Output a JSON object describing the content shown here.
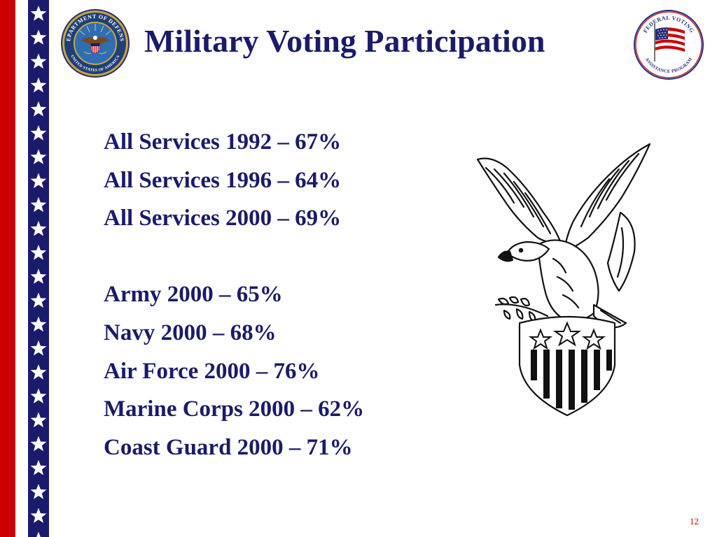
{
  "slide": {
    "title": "Military Voting Participation",
    "page_number": "12"
  },
  "seals": {
    "dod": {
      "icon": "department-of-defense-seal-icon",
      "top_text": "DEPARTMENT OF DEFENSE",
      "bottom_text": "UNITED STATES OF AMERICA"
    },
    "fvap": {
      "icon": "federal-voting-assistance-program-logo-icon",
      "top_text": "FEDERAL VOTING",
      "bottom_text": "ASSISTANCE PROGRAM"
    }
  },
  "stats": {
    "all_services": [
      "All Services 1992 – 67%",
      "All Services 1996 – 64%",
      "All Services 2000 – 69%"
    ],
    "by_branch": [
      "Army 2000 – 65%",
      "Navy 2000 – 68%",
      "Air Force 2000 – 76%",
      "Marine Corps 2000 – 62%",
      "Coast Guard 2000 – 71%"
    ]
  },
  "decor": {
    "eagle_icon": "eagle-with-shield-icon",
    "star_border_icon": "star-border-icon",
    "colors": {
      "navy": "#1b1b6b",
      "red": "#cc0000",
      "white": "#ffffff"
    }
  }
}
